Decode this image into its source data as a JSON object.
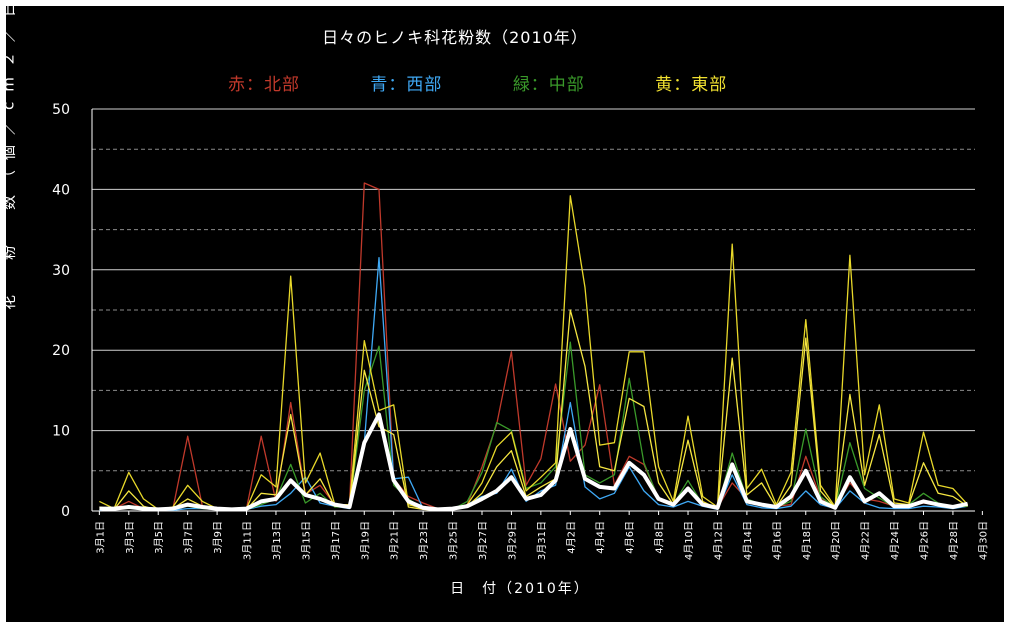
{
  "chart_data": {
    "type": "line",
    "title": "日々のヒノキ科花粉数（2010年）",
    "legend": [
      {
        "label": "赤：北部",
        "color": "#c0392b"
      },
      {
        "label": "青：西部",
        "color": "#3fa9f5"
      },
      {
        "label": "緑：中部",
        "color": "#3a9a2a"
      },
      {
        "label": "黄：東部",
        "color": "#f0e030"
      }
    ],
    "xlabel": "日　付（2010年）",
    "ylabel": "花　粉　数（個／cm２／日）",
    "ylim": [
      0,
      50
    ],
    "y_ticks": [
      0,
      10,
      20,
      30,
      40,
      50
    ],
    "grid": "solid at 10s, dashed at 5s",
    "x_ticks": [
      "3月1日",
      "3月3日",
      "3月5日",
      "3月7日",
      "3月9日",
      "3月11日",
      "3月13日",
      "3月15日",
      "3月17日",
      "3月19日",
      "3月21日",
      "3月23日",
      "3月25日",
      "3月27日",
      "3月29日",
      "3月31日",
      "4月2日",
      "4月4日",
      "4月6日",
      "4月8日",
      "4月10日",
      "4月12日",
      "4月14日",
      "4月16日",
      "4月18日",
      "4月20日",
      "4月22日",
      "4月24日",
      "4月26日",
      "4月28日",
      "4月30日"
    ],
    "x": [
      "3/1",
      "3/2",
      "3/3",
      "3/4",
      "3/5",
      "3/6",
      "3/7",
      "3/8",
      "3/9",
      "3/10",
      "3/11",
      "3/12",
      "3/13",
      "3/14",
      "3/15",
      "3/16",
      "3/17",
      "3/18",
      "3/19",
      "3/20",
      "3/21",
      "3/22",
      "3/23",
      "3/24",
      "3/25",
      "3/26",
      "3/27",
      "3/28",
      "3/29",
      "3/30",
      "3/31",
      "4/1",
      "4/2",
      "4/3",
      "4/4",
      "4/5",
      "4/6",
      "4/7",
      "4/8",
      "4/9",
      "4/10",
      "4/11",
      "4/12",
      "4/13",
      "4/14",
      "4/15",
      "4/16",
      "4/17",
      "4/18",
      "4/19",
      "4/20",
      "4/21",
      "4/22",
      "4/23",
      "4/24",
      "4/25",
      "4/26",
      "4/27",
      "4/28",
      "4/29"
    ],
    "series": [
      {
        "color": "#c0392b",
        "values": [
          0.2,
          0.3,
          1.2,
          0.3,
          0.2,
          0.3,
          9.3,
          0.6,
          0.3,
          0.2,
          0.3,
          9.3,
          1.2,
          13.5,
          2.1,
          3.2,
          0.8,
          0.8,
          40.8,
          40.0,
          4.0,
          1.8,
          1.0,
          0.3,
          0.3,
          0.8,
          5.5,
          10.8,
          19.8,
          3.2,
          6.5,
          15.8,
          6.2,
          8.2,
          15.7,
          3.2,
          6.8,
          5.8,
          1.6,
          0.8,
          3.0,
          0.8,
          0.4,
          3.5,
          1.5,
          0.7,
          0.6,
          0.8,
          6.8,
          1.6,
          0.6,
          3.5,
          1.5,
          1.2,
          0.6,
          0.6,
          1.0,
          0.8,
          0.5,
          0.8
        ]
      },
      {
        "color": "#3fa9f5",
        "values": [
          0.1,
          0.3,
          0.6,
          0.2,
          0.1,
          0.1,
          0.3,
          0.3,
          0.2,
          0.1,
          0.2,
          0.6,
          0.8,
          2.2,
          4.2,
          1.0,
          0.6,
          0.3,
          8.5,
          31.5,
          4.0,
          4.2,
          0.3,
          0.1,
          0.2,
          0.8,
          1.8,
          2.2,
          5.2,
          1.2,
          2.5,
          3.2,
          13.5,
          3.0,
          1.5,
          2.2,
          5.5,
          2.5,
          0.8,
          0.5,
          1.2,
          0.6,
          0.2,
          4.5,
          0.8,
          0.4,
          0.3,
          0.6,
          2.5,
          0.8,
          0.3,
          2.5,
          1.0,
          0.4,
          0.3,
          0.3,
          0.6,
          0.5,
          0.3,
          0.6
        ]
      },
      {
        "color": "#3a9a2a",
        "values": [
          0.2,
          0.3,
          0.5,
          0.2,
          0.1,
          0.3,
          0.6,
          0.3,
          0.2,
          0.1,
          0.2,
          0.8,
          1.5,
          5.8,
          1.0,
          2.2,
          0.5,
          0.5,
          15.0,
          20.5,
          3.2,
          1.5,
          0.3,
          0.1,
          0.2,
          1.2,
          4.8,
          11.0,
          10.0,
          2.8,
          3.5,
          5.5,
          21.0,
          4.5,
          3.5,
          4.5,
          16.5,
          6.0,
          1.5,
          0.8,
          3.8,
          0.8,
          0.4,
          7.2,
          1.5,
          0.8,
          0.5,
          1.2,
          10.2,
          1.8,
          0.4,
          8.5,
          2.8,
          1.6,
          0.5,
          0.8,
          2.2,
          1.0,
          0.5,
          0.6
        ]
      },
      {
        "color": "#e8d82a",
        "values": [
          1.2,
          0.3,
          4.8,
          1.5,
          0.2,
          0.5,
          3.2,
          1.2,
          0.3,
          0.2,
          0.3,
          4.5,
          3.0,
          29.2,
          3.5,
          7.2,
          0.8,
          0.8,
          21.2,
          12.5,
          13.2,
          0.8,
          0.3,
          0.1,
          0.3,
          0.8,
          3.5,
          8.0,
          9.8,
          2.5,
          4.2,
          6.0,
          39.2,
          27.8,
          8.2,
          8.5,
          19.8,
          19.8,
          5.5,
          1.2,
          11.8,
          1.8,
          0.5,
          33.2,
          2.8,
          5.2,
          0.8,
          4.8,
          23.8,
          3.2,
          0.5,
          31.8,
          4.5,
          13.2,
          1.5,
          1.0,
          9.8,
          3.2,
          2.8,
          0.8
        ]
      },
      {
        "color": "#f5e642",
        "values": [
          0.5,
          0.2,
          2.5,
          0.6,
          0.1,
          0.3,
          1.5,
          0.6,
          0.2,
          0.1,
          0.2,
          2.2,
          2.0,
          12.0,
          2.0,
          4.0,
          0.6,
          0.5,
          17.5,
          10.5,
          9.5,
          0.5,
          0.2,
          0.1,
          0.2,
          0.6,
          2.2,
          5.5,
          7.5,
          1.8,
          3.0,
          4.0,
          25.0,
          18.0,
          5.5,
          5.0,
          14.0,
          13.0,
          3.5,
          0.8,
          8.8,
          1.2,
          0.3,
          19.0,
          2.0,
          3.5,
          0.5,
          3.2,
          21.5,
          2.5,
          0.4,
          14.5,
          3.2,
          9.5,
          1.0,
          0.8,
          6.0,
          2.2,
          1.8,
          0.6
        ]
      },
      {
        "color": "#ffffff",
        "values": [
          0.3,
          0.3,
          0.5,
          0.3,
          0.2,
          0.3,
          0.8,
          0.5,
          0.3,
          0.2,
          0.3,
          1.2,
          1.5,
          3.8,
          2.0,
          1.5,
          0.8,
          0.5,
          8.5,
          12.0,
          3.8,
          1.2,
          0.4,
          0.2,
          0.3,
          0.6,
          1.5,
          2.5,
          4.2,
          1.5,
          2.0,
          3.8,
          10.2,
          4.0,
          3.0,
          2.8,
          6.0,
          4.5,
          1.5,
          0.8,
          2.8,
          0.8,
          0.4,
          5.8,
          1.2,
          0.8,
          0.5,
          1.8,
          5.0,
          1.2,
          0.4,
          4.2,
          1.2,
          2.2,
          0.6,
          0.6,
          1.2,
          0.8,
          0.5,
          0.9
        ]
      }
    ]
  }
}
